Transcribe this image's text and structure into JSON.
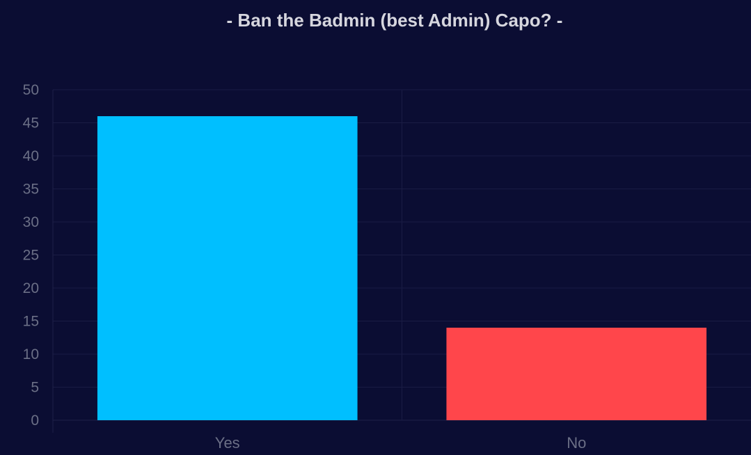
{
  "chart_data": {
    "type": "bar",
    "title": "- Ban the Badmin (best Admin) Capo? -",
    "xlabel": "",
    "ylabel": "",
    "categories": [
      "Yes",
      "No"
    ],
    "values": [
      46,
      14
    ],
    "ylim": [
      0,
      50
    ],
    "yticks": [
      "0",
      "5",
      "10",
      "15",
      "20",
      "25",
      "30",
      "35",
      "40",
      "45",
      "50"
    ],
    "colors": [
      "#00bfff",
      "#ff464b"
    ],
    "grid": true,
    "legend": "none"
  }
}
